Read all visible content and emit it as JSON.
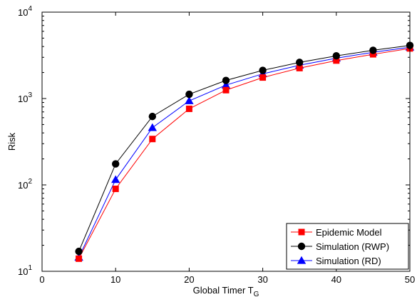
{
  "chart_data": {
    "type": "line",
    "xlabel": "Global Timer T",
    "xlabel_subscript": "G",
    "ylabel": "Risk",
    "xlim": [
      0,
      50
    ],
    "ylim": [
      10,
      10000
    ],
    "yscale": "log",
    "xticks": [
      0,
      10,
      20,
      30,
      40,
      50
    ],
    "yticks": [
      {
        "value": 10,
        "base": "10",
        "exp": "1"
      },
      {
        "value": 100,
        "base": "10",
        "exp": "2"
      },
      {
        "value": 1000,
        "base": "10",
        "exp": "3"
      },
      {
        "value": 10000,
        "base": "10",
        "exp": "4"
      }
    ],
    "grid": false,
    "legend_position": "bottom-right",
    "x": [
      5,
      10,
      15,
      20,
      25,
      30,
      35,
      40,
      45,
      50
    ],
    "series": [
      {
        "name": "Epidemic Model",
        "color": "#ff0000",
        "marker": "square",
        "values": [
          14,
          90,
          340,
          760,
          1250,
          1750,
          2250,
          2750,
          3250,
          3800
        ]
      },
      {
        "name": "Simulation (RWP)",
        "color": "#000000",
        "marker": "circle",
        "values": [
          17,
          175,
          620,
          1120,
          1620,
          2120,
          2620,
          3120,
          3620,
          4120
        ]
      },
      {
        "name": "Simulation (RD)",
        "color": "#0000ff",
        "marker": "triangle",
        "values": [
          14.5,
          115,
          460,
          940,
          1430,
          1930,
          2430,
          2930,
          3430,
          3930
        ]
      }
    ]
  }
}
